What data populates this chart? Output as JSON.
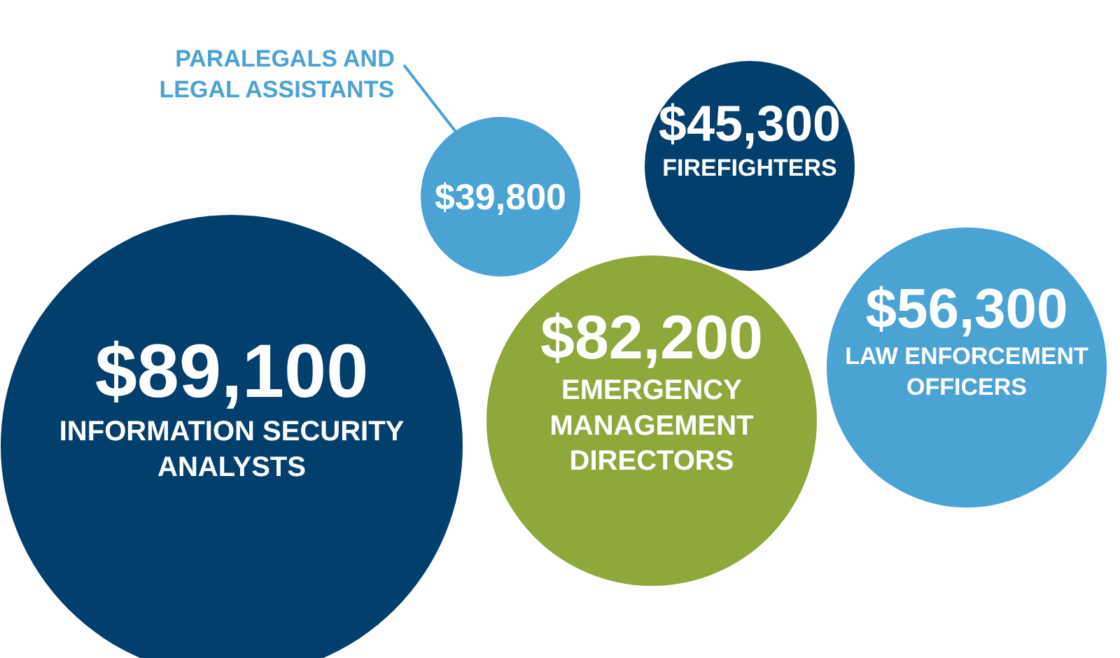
{
  "chart_data": {
    "type": "other",
    "categories": [
      "INFORMATION SECURITY\nANALYSTS",
      "PARALEGALS AND\nLEGAL ASSISTANTS",
      "FIREFIGHTERS",
      "EMERGENCY\nMANAGEMENT\nDIRECTORS",
      "LAW ENFORCEMENT\nOFFICERS"
    ],
    "values": [
      89100,
      39800,
      45300,
      82200,
      56300
    ],
    "value_labels": [
      "$89,100",
      "$39,800",
      "$45,300",
      "$82,200",
      "$56,300"
    ],
    "colors": [
      "#023f6c",
      "#4ba3d4",
      "#023f6c",
      "#8ea83c",
      "#4ba3d4"
    ]
  }
}
